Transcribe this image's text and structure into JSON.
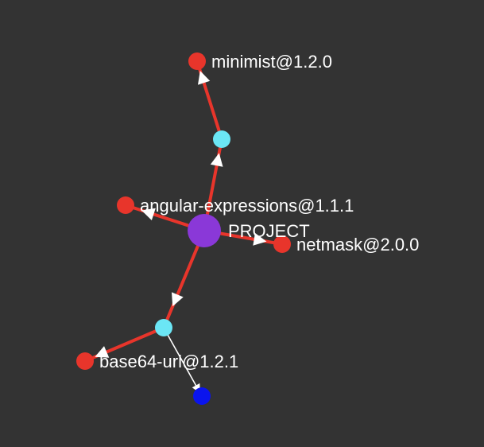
{
  "colors": {
    "background": "#333333",
    "vulnerable_node": "#e8352b",
    "intermediate_node": "#6be6f5",
    "project_node": "#8a38d8",
    "leaf_node": "#0a14ee",
    "vulnerable_edge": "#e8352b",
    "normal_edge": "#ffffff",
    "arrowhead": "#ffffff",
    "label": "#ffffff"
  },
  "graph": {
    "nodes": [
      {
        "id": "project",
        "label": "PROJECT",
        "kind": "project"
      },
      {
        "id": "mid-top",
        "label": "",
        "kind": "intermediate"
      },
      {
        "id": "minimist",
        "label": "minimist@1.2.0",
        "kind": "vulnerable"
      },
      {
        "id": "angular-expressions",
        "label": "angular-expressions@1.1.1",
        "kind": "vulnerable"
      },
      {
        "id": "netmask",
        "label": "netmask@2.0.0",
        "kind": "vulnerable"
      },
      {
        "id": "mid-bottom",
        "label": "",
        "kind": "intermediate"
      },
      {
        "id": "base64-url",
        "label": "base64-url@1.2.1",
        "kind": "vulnerable"
      },
      {
        "id": "leaf",
        "label": "",
        "kind": "leaf"
      }
    ],
    "edges": [
      {
        "from": "project",
        "to": "mid-top",
        "kind": "vulnerable"
      },
      {
        "from": "mid-top",
        "to": "minimist",
        "kind": "vulnerable"
      },
      {
        "from": "project",
        "to": "angular-expressions",
        "kind": "vulnerable"
      },
      {
        "from": "project",
        "to": "netmask",
        "kind": "vulnerable"
      },
      {
        "from": "project",
        "to": "mid-bottom",
        "kind": "vulnerable"
      },
      {
        "from": "mid-bottom",
        "to": "base64-url",
        "kind": "vulnerable"
      },
      {
        "from": "mid-bottom",
        "to": "leaf",
        "kind": "normal"
      }
    ]
  }
}
